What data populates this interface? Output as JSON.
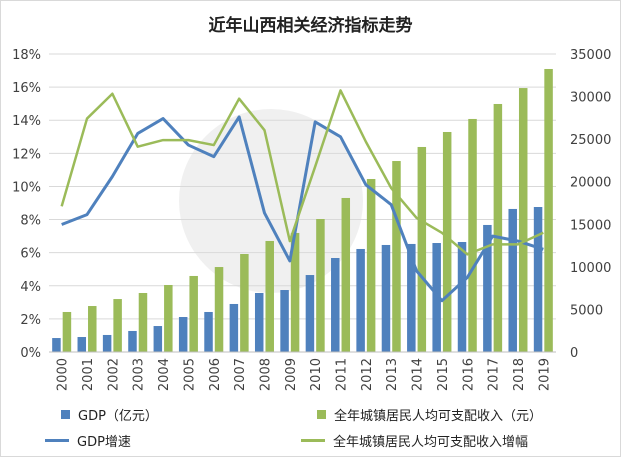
{
  "chart_data": {
    "type": "bar",
    "title": "近年山西相关经济指标走势",
    "categories": [
      "2000",
      "2001",
      "2002",
      "2003",
      "2004",
      "2005",
      "2006",
      "2007",
      "2008",
      "2009",
      "2010",
      "2011",
      "2012",
      "2013",
      "2014",
      "2015",
      "2016",
      "2017",
      "2018",
      "2019"
    ],
    "y_left": {
      "range": [
        0,
        18
      ],
      "unit": "%",
      "ticks": [
        "0%",
        "2%",
        "4%",
        "6%",
        "8%",
        "10%",
        "12%",
        "14%",
        "16%",
        "18%"
      ]
    },
    "y_right": {
      "range": [
        0,
        35000
      ],
      "ticks": [
        "0",
        "5000",
        "10000",
        "15000",
        "20000",
        "25000",
        "30000",
        "35000"
      ]
    },
    "grid": true,
    "legend_position": "bottom",
    "series": [
      {
        "name": "GDP（亿元）",
        "type": "bar",
        "axis": "right",
        "color": "#4f81bd",
        "values": [
          1640,
          1760,
          2000,
          2470,
          3050,
          4110,
          4700,
          5640,
          6930,
          7280,
          9040,
          11040,
          12100,
          12570,
          12690,
          12800,
          12920,
          14920,
          16800,
          17030
        ]
      },
      {
        "name": "全年城镇居民人均可支配收入（元）",
        "type": "bar",
        "axis": "right",
        "color": "#9bbb59",
        "values": [
          4700,
          5400,
          6220,
          6930,
          7870,
          8930,
          9980,
          11510,
          13040,
          13980,
          15620,
          18090,
          20320,
          22430,
          24080,
          25840,
          27370,
          29130,
          31000,
          33240
        ]
      },
      {
        "name": "GDP增速",
        "type": "line",
        "axis": "left",
        "color": "#4f81bd",
        "values": [
          7.7,
          8.3,
          10.6,
          13.2,
          14.1,
          12.5,
          11.8,
          14.2,
          8.4,
          5.5,
          13.9,
          13.0,
          10.1,
          8.9,
          4.9,
          3.1,
          4.5,
          7.0,
          6.7,
          6.2
        ]
      },
      {
        "name": "全年城镇居民人均可支配收入增幅",
        "type": "line",
        "axis": "left",
        "color": "#9bbb59",
        "values": [
          8.8,
          14.1,
          15.6,
          12.4,
          12.8,
          12.8,
          12.5,
          15.3,
          13.4,
          6.7,
          11.2,
          15.8,
          12.7,
          9.9,
          8.1,
          7.2,
          5.9,
          6.5,
          6.5,
          7.2
        ]
      }
    ]
  }
}
